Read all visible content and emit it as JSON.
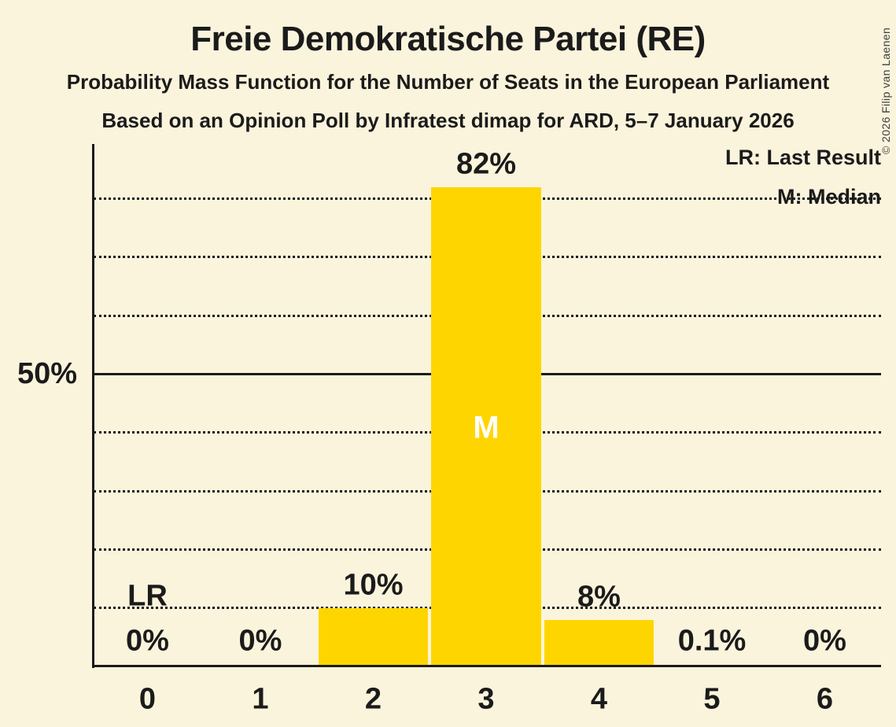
{
  "copyright": "© 2026 Filip van Laenen",
  "chart_data": {
    "type": "bar",
    "title": "Freie Demokratische Partei (RE)",
    "subtitle": "Probability Mass Function for the Number of Seats in the European Parliament",
    "source_line": "Based on an Opinion Poll by Infratest dimap for ARD, 5–7 January 2026",
    "categories": [
      "0",
      "1",
      "2",
      "3",
      "4",
      "5",
      "6"
    ],
    "values": [
      0,
      0,
      10,
      82,
      8,
      0.1,
      0
    ],
    "value_labels": [
      "0%",
      "0%",
      "10%",
      "82%",
      "8%",
      "0.1%",
      "0%"
    ],
    "ylim": [
      0,
      89
    ],
    "gridlines_pct": [
      10,
      20,
      30,
      40,
      50,
      60,
      70,
      80
    ],
    "solid_line_pct": 50,
    "y_axis_label": "50%",
    "grid_on": true,
    "legend": [
      "LR: Last Result",
      "M: Median"
    ],
    "legend_position": "top-right",
    "annotations": [
      {
        "label": "LR",
        "meaning": "Last Result",
        "category": 0,
        "placement": "above-baseline"
      },
      {
        "label": "M",
        "meaning": "Median",
        "category": 3,
        "placement": "inside-bar",
        "color": "#FFFFFF"
      }
    ],
    "colors": {
      "background": "#FBF4DC",
      "bar": "#FFD500",
      "ink": "#1B1B1B",
      "median_text": "#FFFFFF",
      "copyright_text": "#3C3C3C"
    }
  }
}
